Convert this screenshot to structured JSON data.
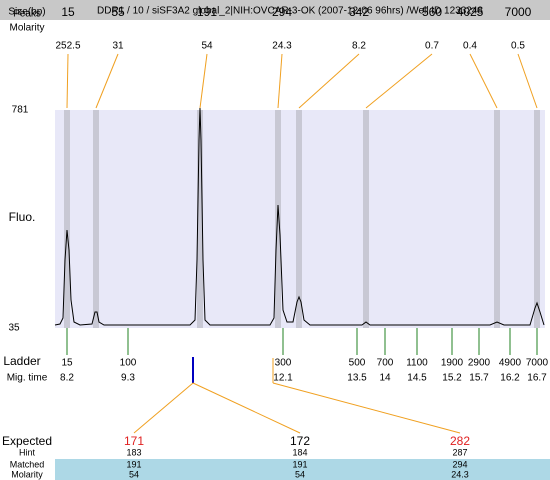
{
  "header": {
    "title": "DDR1 / 10 / siSF3A2 global_2|NIH:OVCAR-3-OK (2007-12-06 96hrs) /Well ID 1233248"
  },
  "row_labels": {
    "size": "Size(bp)",
    "peaks": "Peaks",
    "molarity": "Molarity"
  },
  "peaks": [
    {
      "size": 15,
      "molarity": 252.5
    },
    {
      "size": 55,
      "molarity": 31
    },
    {
      "size": 191,
      "molarity": 54
    },
    {
      "size": 294,
      "molarity": 24.3
    },
    {
      "size": 342,
      "molarity": 8.2
    },
    {
      "size": 560,
      "molarity": 0.7
    },
    {
      "size": 4025,
      "molarity": 0.4
    },
    {
      "size": 7000,
      "molarity": 0.5
    }
  ],
  "axis": {
    "max": 781,
    "min": 35,
    "label": "Fluo."
  },
  "ladder": {
    "label": "Ladder",
    "mig_label": "Mig. time",
    "items": [
      {
        "size": 15,
        "mig": 8.2
      },
      {
        "size": 100,
        "mig": 9.3
      },
      {
        "size": 300,
        "mig": 12.1
      },
      {
        "size": 500,
        "mig": 13.5
      },
      {
        "size": 700,
        "mig": 14
      },
      {
        "size": 1100,
        "mig": 14.5
      },
      {
        "size": 1900,
        "mig": 15.2
      },
      {
        "size": 2900,
        "mig": 15.7
      },
      {
        "size": 4900,
        "mig": 16.2
      },
      {
        "size": 7000,
        "mig": 16.7
      }
    ]
  },
  "expected": {
    "label": "Expected",
    "hint_label": "Hint",
    "matched_label": "Matched",
    "molarity_label": "Molarity",
    "columns": [
      {
        "expected": 171,
        "color": "#e02020",
        "hint": 183,
        "matched": 191,
        "molarity": 54
      },
      {
        "expected": 172,
        "color": "#000000",
        "hint": 184,
        "matched": 191,
        "molarity": 54
      },
      {
        "expected": 282,
        "color": "#e02020",
        "hint": 287,
        "matched": 294,
        "molarity": 24.3
      }
    ]
  }
}
